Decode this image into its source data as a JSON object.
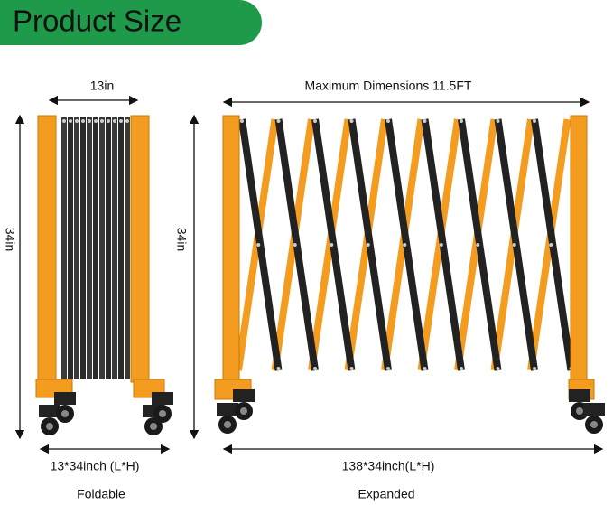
{
  "header": {
    "title": "Product Size"
  },
  "foldable": {
    "width_label": "13in",
    "height_label": "34in",
    "size_label": "13*34inch (L*H)",
    "caption": "Foldable"
  },
  "expanded": {
    "width_label": "Maximum Dimensions 11.5FT",
    "height_label": "34in",
    "size_label": "138*34inch(L*H)",
    "caption": "Expanded"
  }
}
